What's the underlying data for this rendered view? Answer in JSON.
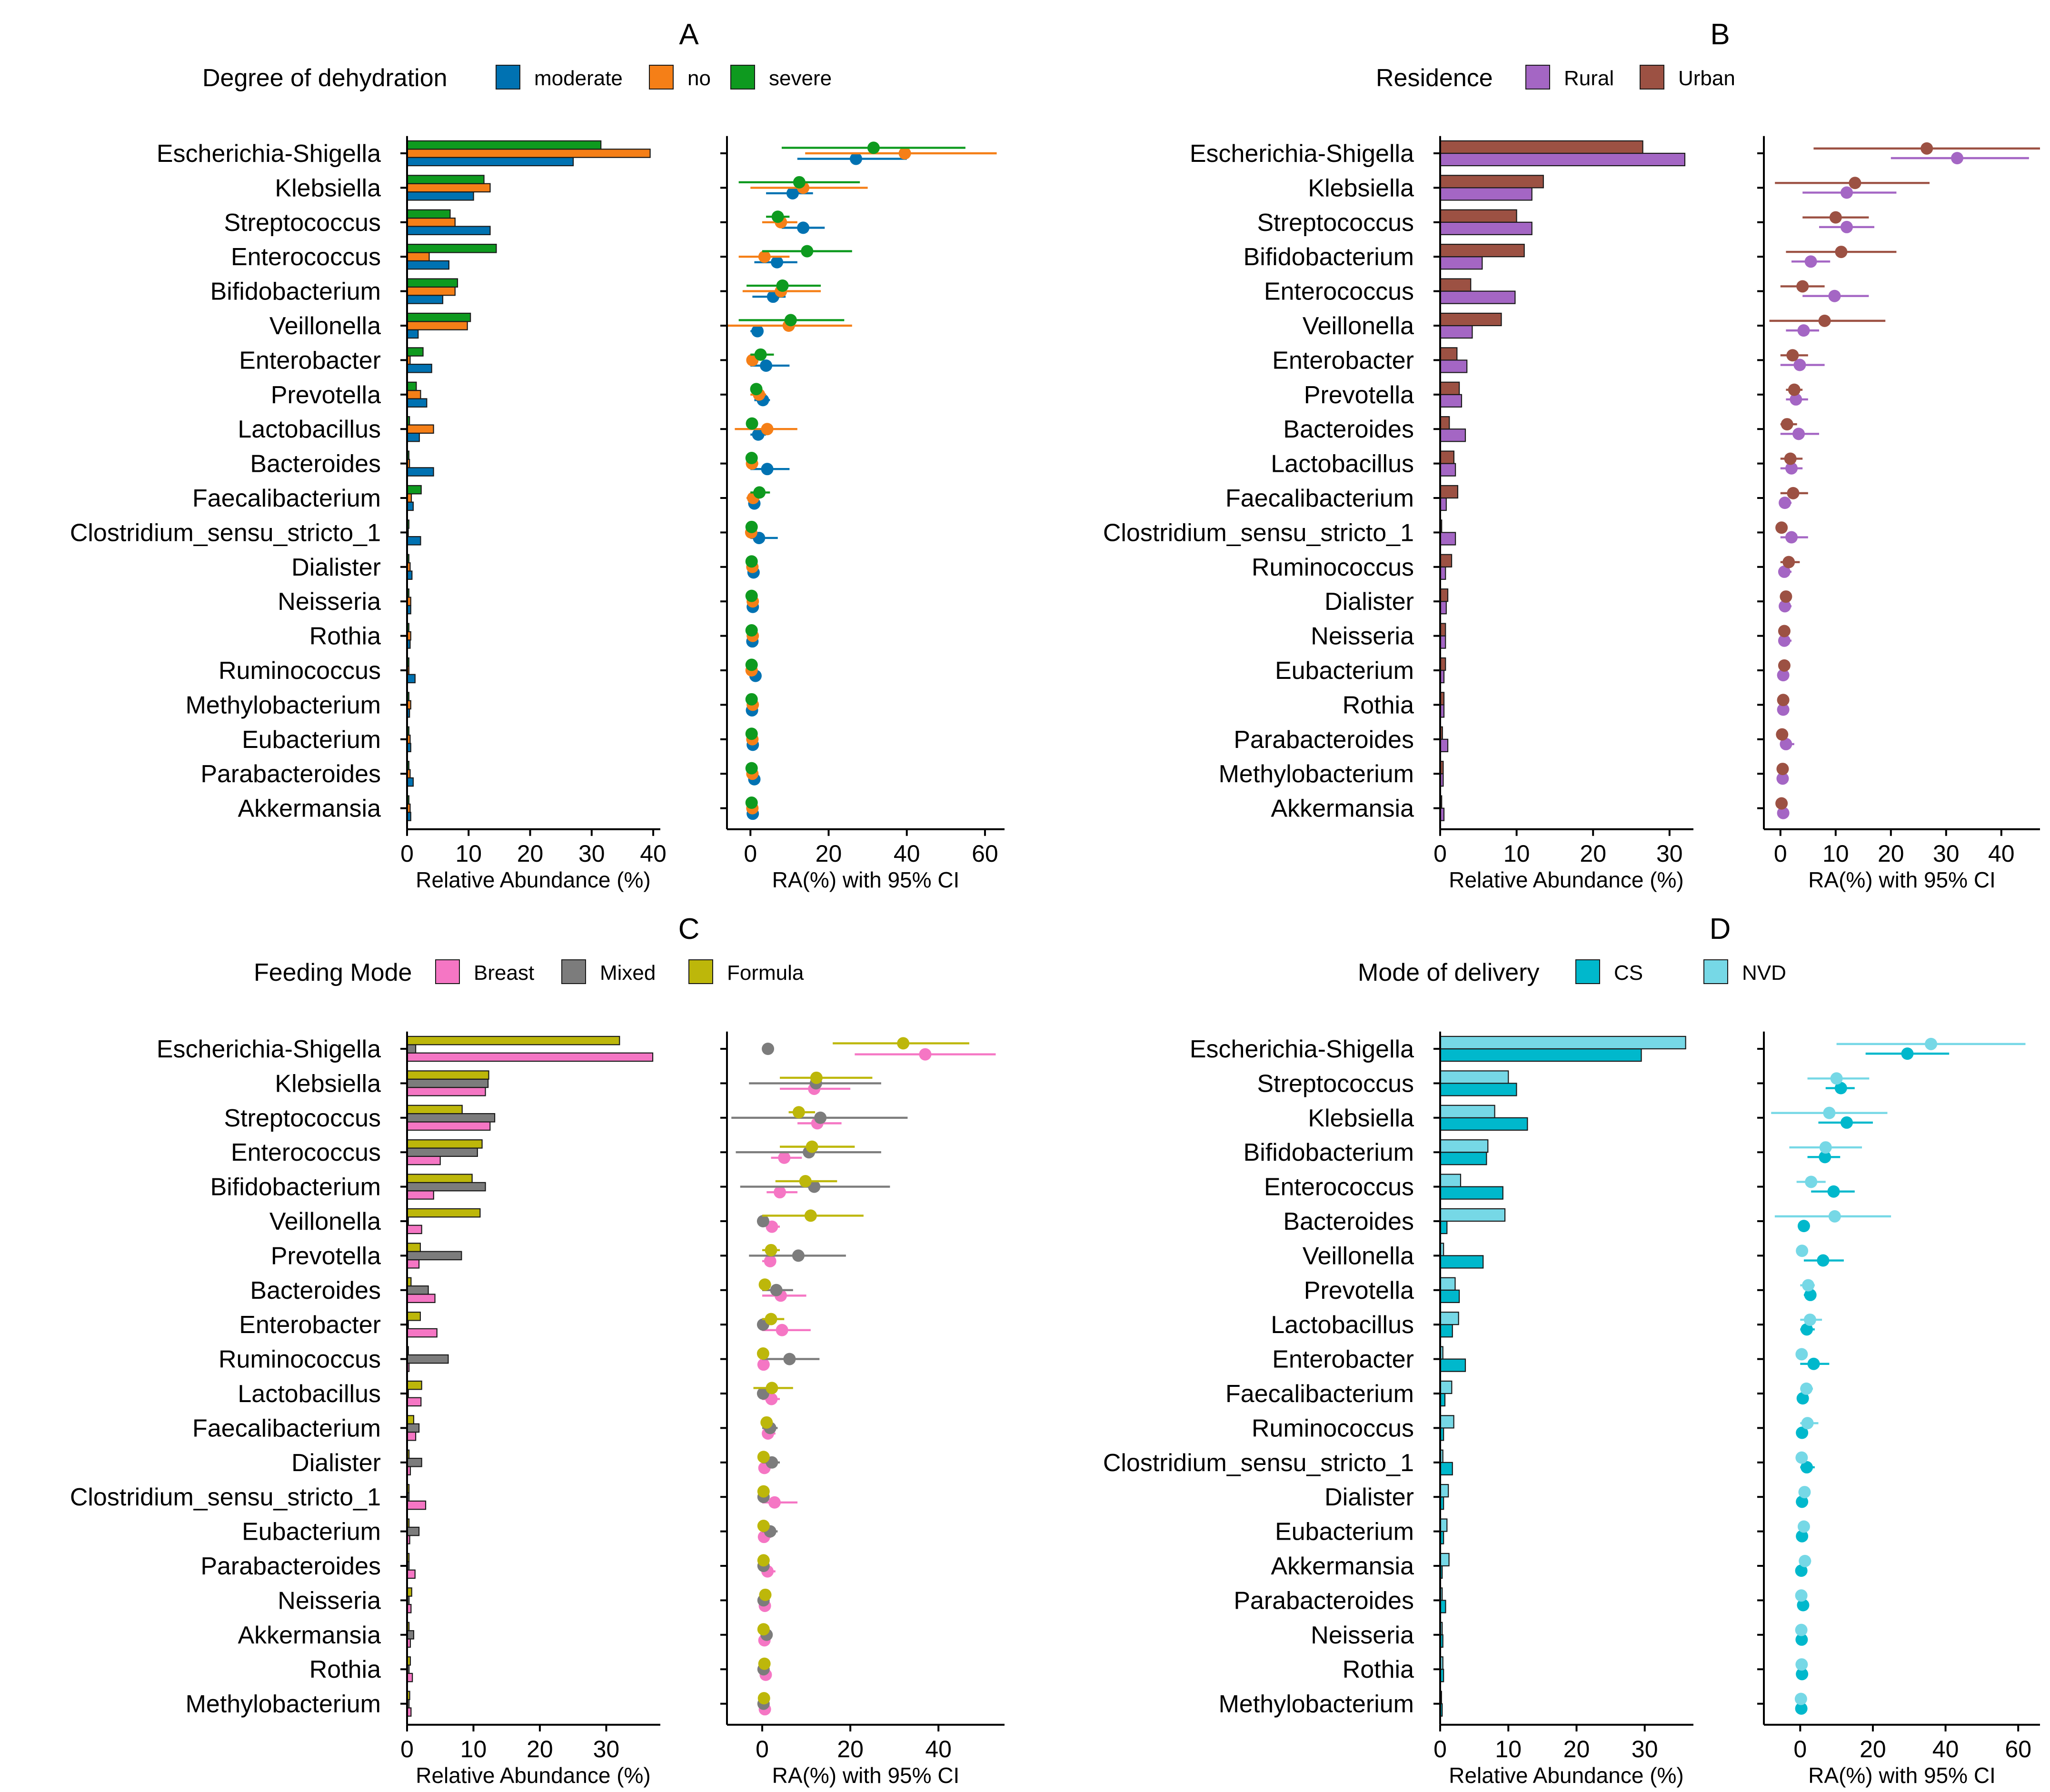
{
  "colors": {
    "moderate": "#0072B2",
    "no": "#F57F17",
    "severe": "#0E9A1F",
    "rural": "#A466C4",
    "urban": "#9C5143",
    "breast": "#F576C4",
    "mixed": "#7C7C7C",
    "formula": "#BDB70A",
    "cs": "#00B8CC",
    "nvd": "#76D8E6"
  },
  "chart_data": [
    {
      "panel": "A",
      "type": "bar",
      "legend_title": "Degree of dehydration",
      "legend": [
        "moderate",
        "no",
        "severe"
      ],
      "legend_position": "top",
      "categories": [
        "Escherichia-Shigella",
        "Klebsiella",
        "Streptococcus",
        "Enterococcus",
        "Bifidobacterium",
        "Veillonella",
        "Enterobacter",
        "Prevotella",
        "Lactobacillus",
        "Bacteroides",
        "Faecalibacterium",
        "Clostridium_sensu_stricto_1",
        "Dialister",
        "Neisseria",
        "Rothia",
        "Ruminococcus",
        "Methylobacterium",
        "Eubacterium",
        "Parabacteroides",
        "Akkermansia"
      ],
      "bar_order_bottom_to_top": [
        "moderate",
        "no",
        "severe"
      ],
      "series": [
        {
          "name": "moderate",
          "color_key": "moderate",
          "values": [
            27,
            10.8,
            13.5,
            6.8,
            5.8,
            1.8,
            4,
            3.2,
            2,
            4.3,
            1,
            2.2,
            0.8,
            0.6,
            0.5,
            1.3,
            0.4,
            0.6,
            1,
            0.6
          ],
          "ci_low": [
            12,
            4,
            8,
            1,
            0.5,
            0,
            0,
            1,
            0,
            0,
            0,
            0,
            0,
            0,
            0,
            0,
            0,
            0,
            0,
            0
          ],
          "ci_high": [
            40,
            16,
            19,
            12,
            9,
            3,
            10,
            5,
            4,
            10,
            2,
            7,
            1.5,
            1.5,
            1,
            2.5,
            1,
            1,
            2,
            1.5
          ]
        },
        {
          "name": "no",
          "color_key": "no",
          "values": [
            39.5,
            13.5,
            7.8,
            3.6,
            7.8,
            9.8,
            0.5,
            2.2,
            4.3,
            0.4,
            0.7,
            0.2,
            0.5,
            0.6,
            0.6,
            0.3,
            0.6,
            0.5,
            0.5,
            0.5
          ],
          "ci_low": [
            14,
            0,
            3,
            -3,
            -2,
            -6,
            -1,
            0,
            -4,
            -1,
            -1,
            -1,
            -0.5,
            -0.5,
            -0.5,
            -0.5,
            -0.5,
            -0.5,
            -0.5,
            -0.5
          ],
          "ci_high": [
            63,
            30,
            12,
            10,
            18,
            26,
            2,
            4,
            12,
            2,
            2,
            1.5,
            1.5,
            1.5,
            1.5,
            1,
            1.5,
            1.5,
            1.5,
            1.5
          ]
        },
        {
          "name": "severe",
          "color_key": "severe",
          "values": [
            31.5,
            12.5,
            7,
            14.5,
            8.2,
            10.3,
            2.6,
            1.5,
            0.4,
            0.3,
            2.3,
            0.3,
            0.3,
            0.3,
            0.3,
            0.3,
            0.3,
            0.3,
            0.3,
            0.3
          ],
          "ci_low": [
            8,
            -3,
            4,
            3,
            -1,
            -3,
            0,
            0,
            0,
            0,
            0,
            0,
            0,
            0,
            0,
            0,
            0,
            0,
            0,
            0
          ],
          "ci_high": [
            55,
            28,
            10,
            26,
            18,
            24,
            6,
            3,
            1,
            1,
            5,
            1,
            1,
            1,
            1,
            1,
            1,
            1,
            1,
            1
          ]
        }
      ],
      "bar_axis": {
        "title": "Relative Abundance (%)",
        "range": [
          0,
          41
        ],
        "ticks": [
          "0",
          "10",
          "20",
          "30",
          "40"
        ]
      },
      "ci_axis": {
        "title": "RA(%) with 95% CI",
        "range": [
          -6,
          65
        ],
        "ticks": [
          "0",
          "20",
          "40",
          "60"
        ]
      }
    },
    {
      "panel": "B",
      "type": "bar",
      "legend_title": "Residence",
      "legend": [
        "Rural",
        "Urban"
      ],
      "legend_position": "top",
      "categories": [
        "Escherichia-Shigella",
        "Klebsiella",
        "Streptococcus",
        "Bifidobacterium",
        "Enterococcus",
        "Veillonella",
        "Enterobacter",
        "Prevotella",
        "Bacteroides",
        "Lactobacillus",
        "Faecalibacterium",
        "Clostridium_sensu_stricto_1",
        "Ruminococcus",
        "Dialister",
        "Neisseria",
        "Eubacterium",
        "Rothia",
        "Parabacteroides",
        "Methylobacterium",
        "Akkermansia"
      ],
      "bar_order_bottom_to_top": [
        "Rural",
        "Urban"
      ],
      "series": [
        {
          "name": "Rural",
          "color_key": "rural",
          "values": [
            32,
            12,
            12,
            5.5,
            9.8,
            4.2,
            3.5,
            2.8,
            3.3,
            2,
            0.8,
            2,
            0.7,
            0.8,
            0.7,
            0.5,
            0.5,
            1,
            0.4,
            0.5
          ],
          "ci_low": [
            20,
            4,
            7,
            2,
            4,
            1,
            0,
            1,
            0,
            0,
            0,
            0,
            0,
            0,
            0,
            0,
            0,
            0,
            0,
            0
          ],
          "ci_high": [
            45,
            21,
            17,
            9,
            16,
            7,
            8,
            5,
            7,
            4,
            2,
            5,
            2,
            2,
            2,
            1.5,
            1.5,
            2.5,
            1,
            1.5
          ]
        },
        {
          "name": "Urban",
          "color_key": "urban",
          "values": [
            26.5,
            13.5,
            10,
            11,
            4,
            8,
            2.2,
            2.5,
            1.2,
            1.8,
            2.3,
            0.2,
            1.5,
            1,
            0.7,
            0.7,
            0.5,
            0.3,
            0.4,
            0.2
          ],
          "ci_low": [
            6,
            -1,
            4,
            1,
            0,
            -2,
            0,
            1,
            0,
            0,
            0,
            0,
            0,
            0,
            0,
            0,
            0,
            0,
            0,
            0
          ],
          "ci_high": [
            47,
            27,
            16,
            21,
            8,
            19,
            5,
            4,
            3,
            4,
            5,
            1,
            3.5,
            2,
            1.5,
            1.5,
            1.5,
            1,
            1,
            1
          ]
        }
      ],
      "bar_axis": {
        "title": "Relative Abundance (%)",
        "range": [
          0,
          33
        ],
        "ticks": [
          "0",
          "10",
          "20",
          "30"
        ]
      },
      "ci_axis": {
        "title": "RA(%) with 95% CI",
        "range": [
          -3,
          47
        ],
        "ticks": [
          "0",
          "10",
          "20",
          "30",
          "40"
        ]
      }
    },
    {
      "panel": "C",
      "type": "bar",
      "legend_title": "Feeding Mode",
      "legend": [
        "Breast",
        "Mixed",
        "Formula"
      ],
      "legend_position": "top",
      "categories": [
        "Escherichia-Shigella",
        "Klebsiella",
        "Streptococcus",
        "Enterococcus",
        "Bifidobacterium",
        "Veillonella",
        "Prevotella",
        "Bacteroides",
        "Enterobacter",
        "Ruminococcus",
        "Lactobacillus",
        "Faecalibacterium",
        "Dialister",
        "Clostridium_sensu_stricto_1",
        "Eubacterium",
        "Parabacteroides",
        "Neisseria",
        "Akkermansia",
        "Rothia",
        "Methylobacterium"
      ],
      "bar_order_bottom_to_top": [
        "Breast",
        "Mixed",
        "Formula"
      ],
      "series": [
        {
          "name": "Breast",
          "color_key": "breast",
          "values": [
            37,
            11.8,
            12.5,
            5,
            4,
            2.2,
            1.8,
            4.2,
            4.5,
            0.3,
            2.1,
            1.3,
            0.5,
            2.8,
            0.4,
            1.2,
            0.6,
            0.5,
            0.8,
            0.6
          ],
          "ci_low": [
            21,
            4,
            8,
            2,
            1,
            1,
            0,
            0,
            0,
            0,
            0,
            0,
            0,
            0,
            0,
            0,
            0,
            0,
            0,
            0
          ],
          "ci_high": [
            53,
            20,
            18,
            9,
            8,
            4,
            3,
            10,
            11,
            1,
            4,
            3,
            1,
            8,
            2,
            3,
            1.5,
            1.5,
            2,
            1.5
          ]
        },
        {
          "name": "Mixed",
          "color_key": "mixed",
          "values": [
            1.3,
            12.2,
            13.2,
            10.6,
            11.8,
            0.2,
            8.2,
            3.2,
            0.2,
            6.2,
            0.2,
            1.8,
            2.2,
            0.3,
            1.8,
            0.3,
            0.3,
            1,
            0.3,
            0.3
          ],
          "ci_low": [
            0,
            -3,
            -7,
            -6,
            -5,
            0,
            -3,
            0,
            0,
            0,
            0,
            0,
            0,
            0,
            0,
            0,
            0,
            0,
            0,
            0
          ],
          "ci_high": [
            2,
            27,
            33,
            27,
            29,
            1,
            19,
            7,
            1,
            13,
            1,
            3.5,
            4,
            1,
            3.5,
            1,
            1,
            2,
            1,
            1
          ]
        },
        {
          "name": "Formula",
          "color_key": "formula",
          "values": [
            32,
            12.3,
            8.3,
            11.3,
            9.8,
            11,
            2,
            0.6,
            2,
            0.2,
            2.2,
            1,
            0.3,
            0.3,
            0.3,
            0.3,
            0.7,
            0.3,
            0.5,
            0.4
          ],
          "ci_low": [
            16,
            4,
            6,
            4,
            3,
            0,
            0,
            0,
            0,
            0,
            -2,
            0,
            0,
            0,
            0,
            0,
            0,
            0,
            0,
            0
          ],
          "ci_high": [
            47,
            25,
            12,
            21,
            17,
            23,
            4,
            2,
            5,
            1,
            7,
            2,
            1,
            1,
            1,
            1,
            1.5,
            1,
            1.5,
            1
          ]
        }
      ],
      "bar_axis": {
        "title": "Relative Abundance (%)",
        "range": [
          0,
          38
        ],
        "ticks": [
          "0",
          "10",
          "20",
          "30"
        ]
      },
      "ci_axis": {
        "title": "RA(%) with 95% CI",
        "range": [
          -8,
          55
        ],
        "ticks": [
          "0",
          "20",
          "40"
        ]
      }
    },
    {
      "panel": "D",
      "type": "bar",
      "legend_title": "Mode of delivery",
      "legend": [
        "CS",
        "NVD"
      ],
      "legend_position": "top",
      "categories": [
        "Escherichia-Shigella",
        "Streptococcus",
        "Klebsiella",
        "Bifidobacterium",
        "Enterococcus",
        "Bacteroides",
        "Veillonella",
        "Prevotella",
        "Lactobacillus",
        "Enterobacter",
        "Faecalibacterium",
        "Ruminococcus",
        "Clostridium_sensu_stricto_1",
        "Dialister",
        "Eubacterium",
        "Akkermansia",
        "Parabacteroides",
        "Neisseria",
        "Rothia",
        "Methylobacterium"
      ],
      "bar_order_bottom_to_top": [
        "CS",
        "NVD"
      ],
      "series": [
        {
          "name": "CS",
          "color_key": "cs",
          "values": [
            29.5,
            11.2,
            12.8,
            6.8,
            9.2,
            1,
            6.3,
            2.8,
            1.8,
            3.7,
            0.7,
            0.5,
            1.8,
            0.5,
            0.5,
            0.3,
            0.8,
            0.4,
            0.5,
            0.3
          ],
          "ci_low": [
            18,
            7,
            5,
            2,
            3,
            0,
            1,
            1,
            0,
            0,
            0,
            0,
            0,
            0,
            0,
            0,
            0,
            0,
            0,
            0
          ],
          "ci_high": [
            41,
            15,
            20,
            11,
            15,
            2,
            12,
            4,
            4,
            8,
            1.5,
            1,
            4,
            1,
            1,
            1,
            1.5,
            1,
            1,
            1
          ]
        },
        {
          "name": "NVD",
          "color_key": "nvd",
          "values": [
            36,
            10,
            8,
            7,
            3,
            9.5,
            0.5,
            2.2,
            2.7,
            0.4,
            1.7,
            2,
            0.4,
            1.2,
            1,
            1.3,
            0.3,
            0.3,
            0.4,
            0.2
          ],
          "ci_low": [
            10,
            2,
            -8,
            -3,
            -1,
            -7,
            0,
            0,
            0,
            0,
            0,
            0,
            0,
            0,
            0,
            0,
            0,
            0,
            0,
            0
          ],
          "ci_high": [
            62,
            19,
            24,
            17,
            7,
            25,
            1,
            4,
            6,
            1,
            3.5,
            5,
            1,
            2.5,
            2,
            3,
            1,
            1,
            1,
            0.5
          ]
        }
      ],
      "bar_axis": {
        "title": "Relative Abundance (%)",
        "range": [
          0,
          37
        ],
        "ticks": [
          "0",
          "10",
          "20",
          "30"
        ]
      },
      "ci_axis": {
        "title": "RA(%) with 95% CI",
        "range": [
          -10,
          66
        ],
        "ticks": [
          "0",
          "20",
          "40",
          "60"
        ]
      }
    }
  ]
}
